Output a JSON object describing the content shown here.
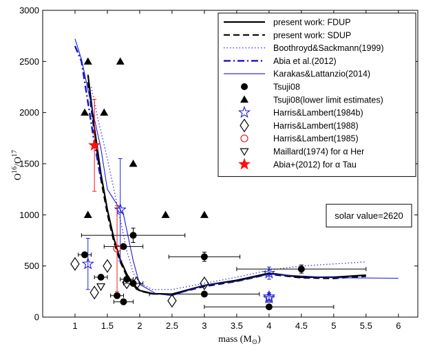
{
  "chart_data": {
    "type": "scatter",
    "xlabel": "mass (M",
    "xlabel_sub": "⊙",
    "xlabel_close": ")",
    "ylabel": "O",
    "ylabel_sup1": "16",
    "ylabel_mid": "/O",
    "ylabel_sup2": "17",
    "xlim": [
      0.5,
      6.3
    ],
    "ylim": [
      0,
      3000
    ],
    "xticks": [
      1,
      1.5,
      2,
      2.5,
      3,
      3.5,
      4,
      4.5,
      5,
      5.5,
      6
    ],
    "xtick_labels": [
      "1",
      "1.5",
      "2",
      "2.5",
      "3",
      "3.5",
      "4",
      "4.5",
      "5",
      "5.5",
      "6"
    ],
    "yticks": [
      0,
      500,
      1000,
      1500,
      2000,
      2500,
      3000
    ],
    "ytick_labels": [
      "0",
      "500",
      "1000",
      "1500",
      "2000",
      "2500",
      "3000"
    ],
    "annotation": "solar value=2620",
    "legend_position": "top-right",
    "series": [
      {
        "name": "present work: FDUP",
        "kind": "line",
        "color": "#000000",
        "style": "solid",
        "width": 2.2,
        "x": [
          1.2,
          1.3,
          1.4,
          1.5,
          1.6,
          1.7,
          1.8,
          1.9,
          2.0,
          2.2,
          2.5,
          3.0,
          3.5,
          4.0,
          4.5,
          5.0,
          5.5
        ],
        "y": [
          2370,
          1850,
          1400,
          1050,
          770,
          560,
          420,
          320,
          260,
          230,
          225,
          310,
          360,
          430,
          390,
          390,
          410
        ]
      },
      {
        "name": "present work: SDUP",
        "kind": "line",
        "color": "#000000",
        "style": "dashed",
        "width": 2.2,
        "x": [
          1.2,
          1.3,
          1.4,
          1.5,
          1.6,
          1.7,
          1.8,
          1.9,
          2.0,
          2.2,
          2.5,
          3.0,
          3.5,
          4.0,
          4.5,
          5.0,
          5.5
        ],
        "y": [
          2300,
          1800,
          1350,
          1010,
          740,
          540,
          400,
          310,
          255,
          228,
          222,
          300,
          350,
          420,
          385,
          378,
          400
        ]
      },
      {
        "name": "Boothroyd&Sackmann(1999)",
        "kind": "line",
        "color": "#3b3bd8",
        "style": "dotted",
        "width": 1.4,
        "x": [
          1.25,
          1.35,
          1.5,
          1.65,
          1.8,
          1.9,
          2.0,
          2.2,
          2.5,
          3.0,
          3.5,
          4.0,
          4.5,
          5.0,
          5.5
        ],
        "y": [
          2250,
          1950,
          1550,
          1100,
          650,
          430,
          330,
          270,
          270,
          330,
          390,
          460,
          500,
          520,
          540
        ]
      },
      {
        "name": "Abia et al.(2012)",
        "kind": "line",
        "color": "#1010c8",
        "style": "dashdot",
        "width": 2.4,
        "x": [
          1.0,
          1.1,
          1.2,
          1.3,
          1.4
        ],
        "y": [
          2650,
          2500,
          2100,
          1700,
          1350
        ]
      },
      {
        "name": "Karakas&Lattanzio(2014)",
        "kind": "line",
        "color": "#1a1ae0",
        "style": "solid",
        "width": 1.1,
        "x": [
          1.0,
          1.1,
          1.25,
          1.4,
          1.5,
          1.75,
          1.9,
          2.0,
          2.25,
          2.5,
          3.0,
          3.5,
          4.0,
          5.0,
          6.0
        ],
        "y": [
          2720,
          2520,
          2080,
          1650,
          1250,
          1000,
          550,
          320,
          230,
          210,
          310,
          350,
          420,
          385,
          380
        ]
      },
      {
        "name": "Tsuji08",
        "kind": "points",
        "marker": "filled-circle",
        "color": "#000000",
        "points": [
          {
            "x": 1.15,
            "y": 610,
            "xerr": 0.1,
            "yerr": 0
          },
          {
            "x": 1.4,
            "y": 390,
            "xerr": 0.1,
            "yerr": 0
          },
          {
            "x": 1.65,
            "y": 210,
            "xerr": 0.1,
            "yerr": 0
          },
          {
            "x": 1.75,
            "y": 150,
            "xerr": 0.15,
            "yerr": 0
          },
          {
            "x": 1.75,
            "y": 690,
            "xerr": 0.3,
            "yerr": 0
          },
          {
            "x": 1.8,
            "y": 370,
            "xerr": 0.1,
            "yerr": 0
          },
          {
            "x": 1.9,
            "y": 800,
            "xerr": 0.8,
            "yerr": 70
          },
          {
            "x": 1.9,
            "y": 330,
            "xerr": 0.15,
            "yerr": 0
          },
          {
            "x": 3.0,
            "y": 590,
            "xerr": 0.55,
            "yerr": 45
          },
          {
            "x": 3.0,
            "y": 225,
            "xerr": 0.85,
            "yerr": 0
          },
          {
            "x": 4.0,
            "y": 100,
            "xerr": 1.0,
            "yerr": 0
          },
          {
            "x": 4.5,
            "y": 470,
            "xerr": 1.0,
            "yerr": 40
          }
        ]
      },
      {
        "name": "Tsuji08(lower limit estimates)",
        "kind": "points",
        "marker": "filled-triangle",
        "color": "#000000",
        "points": [
          {
            "x": 1.2,
            "y": 2500
          },
          {
            "x": 1.7,
            "y": 2500
          },
          {
            "x": 1.15,
            "y": 2000
          },
          {
            "x": 1.45,
            "y": 2000
          },
          {
            "x": 1.9,
            "y": 1500
          },
          {
            "x": 1.2,
            "y": 1000
          },
          {
            "x": 2.4,
            "y": 1000
          },
          {
            "x": 3.0,
            "y": 1000
          }
        ]
      },
      {
        "name": "Harris&Lambert(1984b)",
        "kind": "points",
        "marker": "open-star",
        "color": "#2020d0",
        "points": [
          {
            "x": 1.2,
            "y": 520,
            "xerr": 0,
            "yerr": 250
          },
          {
            "x": 1.7,
            "y": 1050,
            "xerr": 0,
            "yerr": 500
          },
          {
            "x": 4.0,
            "y": 430,
            "xerr": 0,
            "yerr": 60
          },
          {
            "x": 4.0,
            "y": 200,
            "xerr": 0,
            "yerr": 40
          },
          {
            "x": 4.0,
            "y": 185,
            "xerr": 0,
            "yerr": 40
          }
        ]
      },
      {
        "name": "Harris&Lambert(1988)",
        "kind": "points",
        "marker": "open-diamond",
        "color": "#000000",
        "points": [
          {
            "x": 1.0,
            "y": 520
          },
          {
            "x": 1.3,
            "y": 240
          },
          {
            "x": 1.5,
            "y": 500
          },
          {
            "x": 1.8,
            "y": 340
          },
          {
            "x": 1.95,
            "y": 330
          },
          {
            "x": 2.5,
            "y": 160
          },
          {
            "x": 3.0,
            "y": 330
          }
        ]
      },
      {
        "name": "Harris&Lambert(1985)",
        "kind": "points",
        "marker": "open-circle",
        "color": "#e02020",
        "points": [
          {
            "x": 1.65,
            "y": 670,
            "xerr": 0,
            "yerr": 420
          }
        ]
      },
      {
        "name": "Maillard(1974) for α Her",
        "kind": "points",
        "marker": "open-triangle-down",
        "color": "#000000",
        "points": [
          {
            "x": 1.4,
            "y": 300,
            "xerr": 0,
            "yerr": 0
          }
        ]
      },
      {
        "name": "Abia+(2012) for α Tau",
        "kind": "points",
        "marker": "filled-star",
        "color": "#ff1010",
        "points": [
          {
            "x": 1.3,
            "y": 1680,
            "xerr": 0,
            "yerr": 450
          }
        ]
      }
    ]
  }
}
